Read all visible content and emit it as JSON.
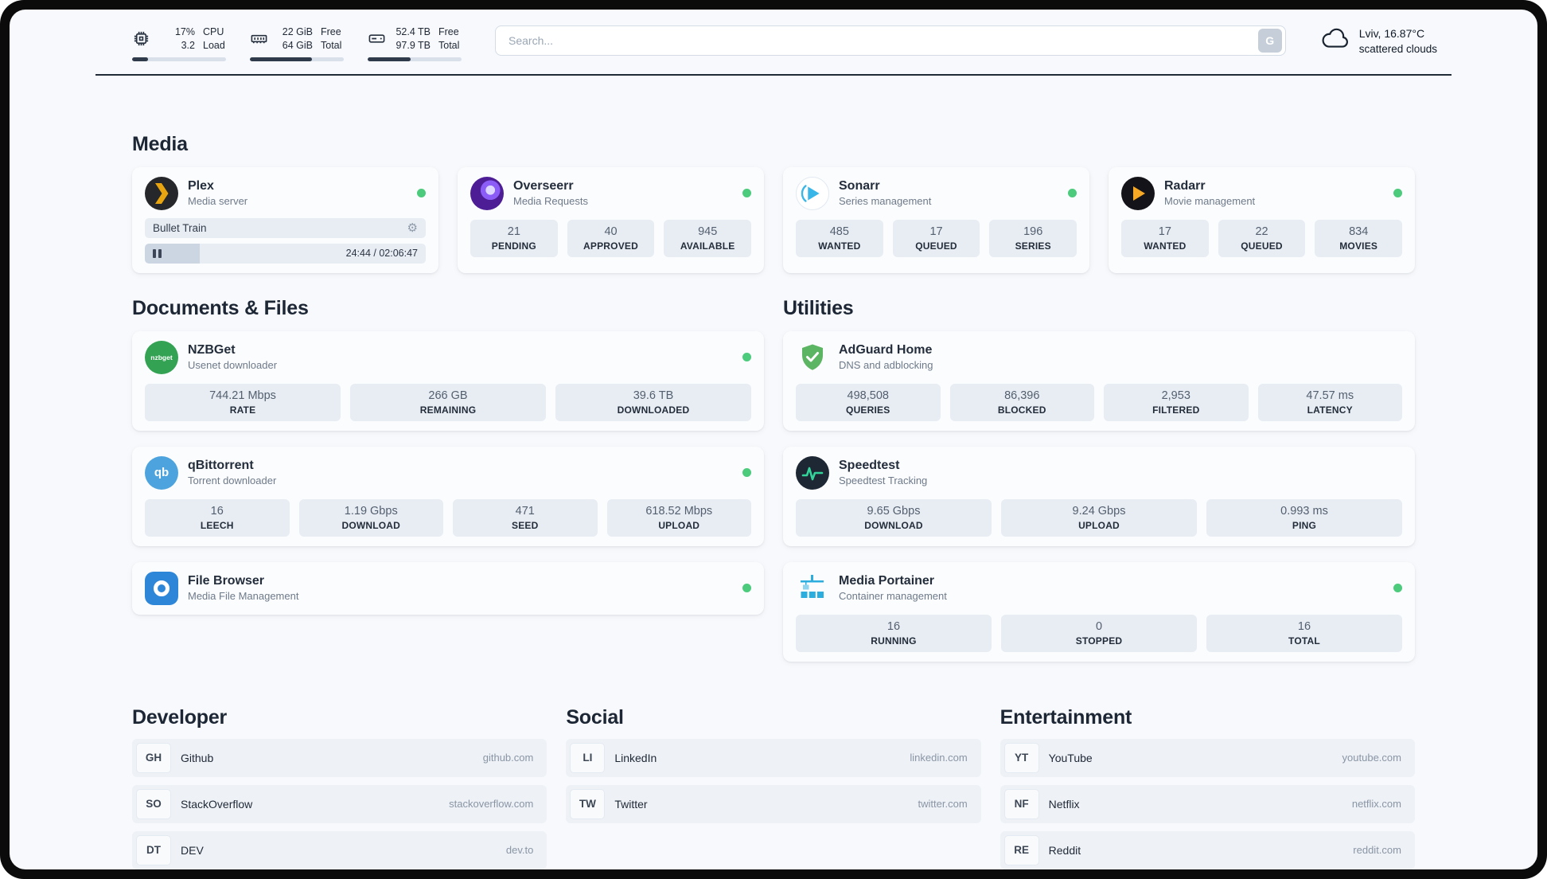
{
  "topbar": {
    "cpu": {
      "value1": "17%",
      "value2": "3.2",
      "label1": "CPU",
      "label2": "Load",
      "bar_percent": 17
    },
    "memory": {
      "value1": "22 GiB",
      "value2": "64 GiB",
      "label1": "Free",
      "label2": "Total",
      "bar_percent": 66
    },
    "disk": {
      "value1": "52.4 TB",
      "value2": "97.9 TB",
      "label1": "Free",
      "label2": "Total",
      "bar_percent": 46
    },
    "search": {
      "placeholder": "Search...",
      "engine_button": "G"
    },
    "weather": {
      "icon": "cloud-icon",
      "location": "Lviv, 16.87°C",
      "condition": "scattered clouds"
    }
  },
  "sections": {
    "media": {
      "title": "Media",
      "plex": {
        "icon": "plex-icon",
        "name": "Plex",
        "subtitle": "Media server",
        "status": "online",
        "now_playing": {
          "title": "Bullet Train",
          "time": "24:44 / 02:06:47",
          "progress_percent": 19.5
        }
      },
      "overseerr": {
        "icon": "overseerr-icon",
        "name": "Overseerr",
        "subtitle": "Media Requests",
        "status": "online",
        "stats": [
          {
            "value": "21",
            "label": "PENDING"
          },
          {
            "value": "40",
            "label": "APPROVED"
          },
          {
            "value": "945",
            "label": "AVAILABLE"
          }
        ]
      },
      "sonarr": {
        "icon": "sonarr-icon",
        "name": "Sonarr",
        "subtitle": "Series management",
        "status": "online",
        "stats": [
          {
            "value": "485",
            "label": "WANTED"
          },
          {
            "value": "17",
            "label": "QUEUED"
          },
          {
            "value": "196",
            "label": "SERIES"
          }
        ]
      },
      "radarr": {
        "icon": "radarr-icon",
        "name": "Radarr",
        "subtitle": "Movie management",
        "status": "online",
        "stats": [
          {
            "value": "17",
            "label": "WANTED"
          },
          {
            "value": "22",
            "label": "QUEUED"
          },
          {
            "value": "834",
            "label": "MOVIES"
          }
        ]
      }
    },
    "documents": {
      "title": "Documents & Files",
      "nzbget": {
        "icon": "nzbget-icon",
        "name": "NZBGet",
        "subtitle": "Usenet downloader",
        "status": "online",
        "stats": [
          {
            "value": "744.21 Mbps",
            "label": "RATE"
          },
          {
            "value": "266 GB",
            "label": "REMAINING"
          },
          {
            "value": "39.6 TB",
            "label": "DOWNLOADED"
          }
        ]
      },
      "qbittorrent": {
        "icon": "qbittorrent-icon",
        "name": "qBittorrent",
        "subtitle": "Torrent downloader",
        "status": "online",
        "stats": [
          {
            "value": "16",
            "label": "LEECH"
          },
          {
            "value": "1.19 Gbps",
            "label": "DOWNLOAD"
          },
          {
            "value": "471",
            "label": "SEED"
          },
          {
            "value": "618.52 Mbps",
            "label": "UPLOAD"
          }
        ]
      },
      "filebrowser": {
        "icon": "filebrowser-icon",
        "name": "File Browser",
        "subtitle": "Media File Management",
        "status": "online"
      }
    },
    "utilities": {
      "title": "Utilities",
      "adguard": {
        "icon": "adguard-shield-icon",
        "name": "AdGuard Home",
        "subtitle": "DNS and adblocking",
        "stats": [
          {
            "value": "498,508",
            "label": "QUERIES"
          },
          {
            "value": "86,396",
            "label": "BLOCKED"
          },
          {
            "value": "2,953",
            "label": "FILTERED"
          },
          {
            "value": "47.57 ms",
            "label": "LATENCY"
          }
        ]
      },
      "speedtest": {
        "icon": "speedtest-icon",
        "name": "Speedtest",
        "subtitle": "Speedtest Tracking",
        "stats": [
          {
            "value": "9.65 Gbps",
            "label": "DOWNLOAD"
          },
          {
            "value": "9.24 Gbps",
            "label": "UPLOAD"
          },
          {
            "value": "0.993 ms",
            "label": "PING"
          }
        ]
      },
      "portainer": {
        "icon": "portainer-crane-icon",
        "name": "Media Portainer",
        "subtitle": "Container management",
        "status": "online",
        "stats": [
          {
            "value": "16",
            "label": "RUNNING"
          },
          {
            "value": "0",
            "label": "STOPPED"
          },
          {
            "value": "16",
            "label": "TOTAL"
          }
        ]
      }
    },
    "bookmarks": [
      {
        "title": "Developer",
        "links": [
          {
            "abbr": "GH",
            "name": "Github",
            "url": "github.com"
          },
          {
            "abbr": "SO",
            "name": "StackOverflow",
            "url": "stackoverflow.com"
          },
          {
            "abbr": "DT",
            "name": "DEV",
            "url": "dev.to"
          }
        ]
      },
      {
        "title": "Social",
        "links": [
          {
            "abbr": "LI",
            "name": "LinkedIn",
            "url": "linkedin.com"
          },
          {
            "abbr": "TW",
            "name": "Twitter",
            "url": "twitter.com"
          }
        ]
      },
      {
        "title": "Entertainment",
        "links": [
          {
            "abbr": "YT",
            "name": "YouTube",
            "url": "youtube.com"
          },
          {
            "abbr": "NF",
            "name": "Netflix",
            "url": "netflix.com"
          },
          {
            "abbr": "RE",
            "name": "Reddit",
            "url": "reddit.com"
          }
        ]
      }
    ]
  },
  "colors": {
    "status_online": "#4ccb7d",
    "page_background": "#f7f9fc",
    "tile_background": "#e8edf4",
    "topbar_divider": "#212b38",
    "plex_accent": "#e9a510",
    "radarr_accent": "#f7a824",
    "sonarr_accent": "#38b6e8",
    "overseerr_accent": "#8b5cf6",
    "nzbget_accent": "#33a353",
    "qbittorrent_accent": "#4da3dd",
    "adguard_accent": "#5cb563",
    "speedtest_accent": "#34d399",
    "filebrowser_accent": "#2e86d8",
    "portainer_accent": "#2badde"
  }
}
